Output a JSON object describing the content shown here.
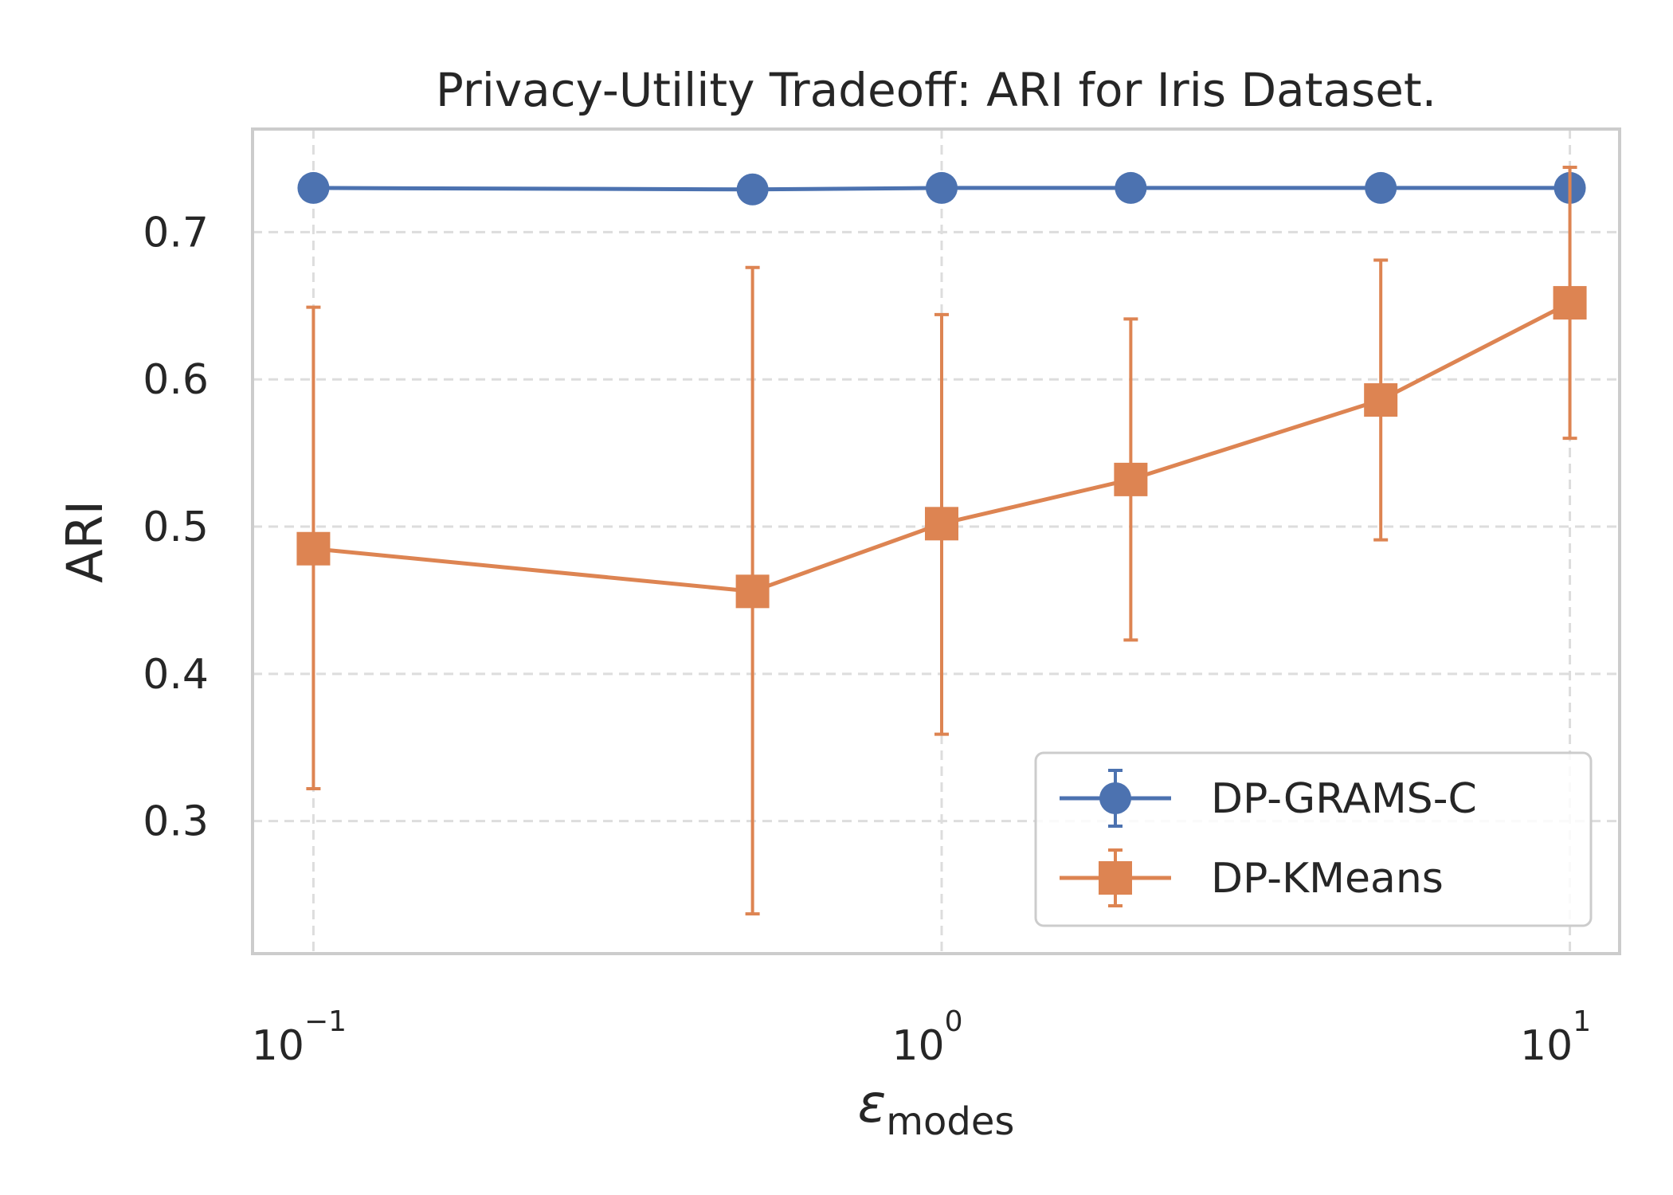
{
  "chart_data": {
    "type": "line",
    "title": "Privacy-Utility Tradeoff: ARI for Iris Dataset.",
    "xlabel": {
      "base": "ε",
      "subscript": "modes"
    },
    "ylabel": "ARI",
    "x_scale": "log",
    "xlim": [
      0.08,
      12
    ],
    "ylim": [
      0.21,
      0.77
    ],
    "x_ticks": [
      {
        "value": 0.1,
        "base": "10",
        "exp": "−1"
      },
      {
        "value": 1,
        "base": "10",
        "exp": "0"
      },
      {
        "value": 10,
        "base": "10",
        "exp": "1"
      }
    ],
    "y_ticks": [
      {
        "value": 0.3,
        "label": "0.3"
      },
      {
        "value": 0.4,
        "label": "0.4"
      },
      {
        "value": 0.5,
        "label": "0.5"
      },
      {
        "value": 0.6,
        "label": "0.6"
      },
      {
        "value": 0.7,
        "label": "0.7"
      }
    ],
    "grid": true,
    "legend_position": "lower-right",
    "x": [
      0.1,
      0.5,
      1,
      2,
      5,
      10
    ],
    "series": [
      {
        "name": "DP-GRAMS-C",
        "marker": "circle",
        "color": "#4c72b0",
        "values": [
          0.73,
          0.729,
          0.73,
          0.73,
          0.73,
          0.73
        ],
        "err_low": [
          0.73,
          0.729,
          0.73,
          0.73,
          0.73,
          0.73
        ],
        "err_high": [
          0.73,
          0.729,
          0.73,
          0.73,
          0.73,
          0.73
        ]
      },
      {
        "name": "DP-KMeans",
        "marker": "square",
        "color": "#dd8452",
        "values": [
          0.485,
          0.456,
          0.502,
          0.532,
          0.586,
          0.652
        ],
        "err_low": [
          0.322,
          0.237,
          0.359,
          0.423,
          0.491,
          0.56
        ],
        "err_high": [
          0.649,
          0.676,
          0.644,
          0.641,
          0.681,
          0.744
        ]
      }
    ]
  }
}
